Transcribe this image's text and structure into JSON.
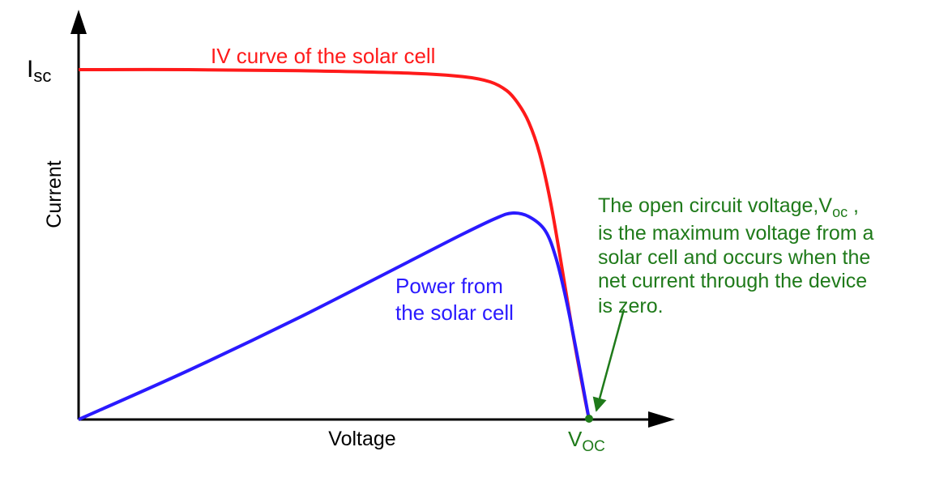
{
  "chart_data": {
    "type": "line",
    "x_axis_label": "Voltage",
    "y_axis_label": "Current",
    "y_tick": {
      "main": "I",
      "sub": "sc"
    },
    "x_tick": {
      "main": "V",
      "sub": "OC"
    },
    "colors": {
      "iv_curve": "#ff1a1a",
      "power_curve": "#2a1aff",
      "annotation": "#1f7a1a",
      "axes": "#000000"
    },
    "xlim": [
      0,
      1
    ],
    "ylim": [
      0,
      1
    ],
    "series": [
      {
        "name": "IV curve of the solar cell",
        "points": [
          [
            0.0,
            1.0
          ],
          [
            0.2,
            1.0
          ],
          [
            0.4,
            0.997
          ],
          [
            0.6,
            0.99
          ],
          [
            0.7,
            0.98
          ],
          [
            0.75,
            0.965
          ],
          [
            0.78,
            0.94
          ],
          [
            0.8,
            0.905
          ],
          [
            0.82,
            0.85
          ],
          [
            0.84,
            0.76
          ],
          [
            0.86,
            0.62
          ],
          [
            0.88,
            0.44
          ],
          [
            0.9,
            0.25
          ],
          [
            0.92,
            0.08
          ],
          [
            0.93,
            0.0
          ]
        ]
      },
      {
        "name": "Power from the solar cell",
        "label_lines": [
          "Power from",
          "the solar cell"
        ],
        "points": [
          [
            0.0,
            0.0
          ],
          [
            0.2,
            0.14
          ],
          [
            0.4,
            0.29
          ],
          [
            0.6,
            0.45
          ],
          [
            0.7,
            0.53
          ],
          [
            0.76,
            0.575
          ],
          [
            0.79,
            0.59
          ],
          [
            0.82,
            0.58
          ],
          [
            0.85,
            0.54
          ],
          [
            0.87,
            0.46
          ],
          [
            0.89,
            0.33
          ],
          [
            0.91,
            0.17
          ],
          [
            0.93,
            0.0
          ]
        ]
      }
    ],
    "annotation": {
      "lines": [
        {
          "text": "The open circuit voltage,V",
          "sub": "oc",
          "tail": " ,"
        },
        {
          "text": "is the maximum voltage from a"
        },
        {
          "text": "solar cell and occurs when the"
        },
        {
          "text": "net current through the device"
        },
        {
          "text": "is zero."
        }
      ]
    }
  }
}
